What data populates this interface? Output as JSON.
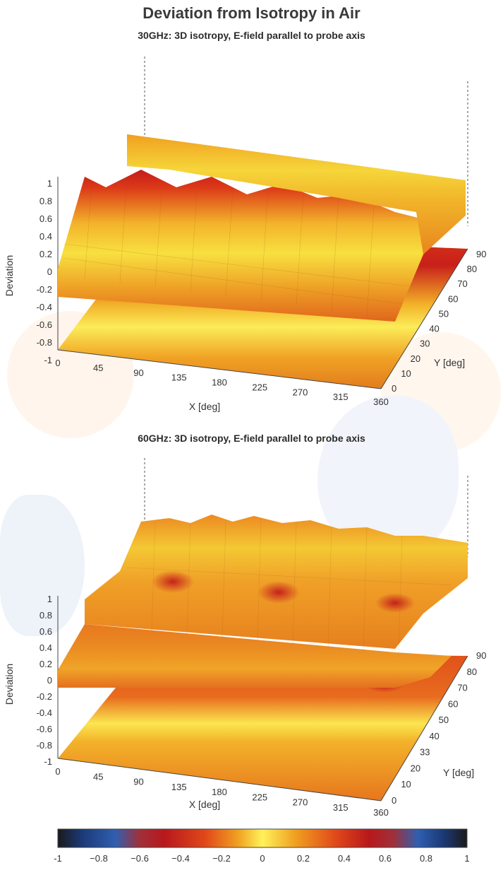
{
  "title": "Deviation from Isotropy in Air",
  "colors": {
    "dark_red": "#c01818",
    "red": "#e03a1a",
    "orange": "#ee7a1e",
    "yellow": "#f5d21c",
    "bright_yellow": "#fff25a"
  },
  "chart_data": [
    {
      "type": "surface",
      "title": "30GHz: 3D isotropy, E-field parallel to probe axis",
      "xlabel": "X [deg]",
      "ylabel": "Y [deg]",
      "zlabel": "Deviation",
      "x_ticks": [
        "0",
        "45",
        "90",
        "135",
        "180",
        "225",
        "270",
        "315",
        "360"
      ],
      "y_ticks": [
        "0",
        "10",
        "20",
        "30",
        "40",
        "50",
        "60",
        "70",
        "80",
        "90"
      ],
      "z_ticks": [
        "-1",
        "-0.8",
        "-0.6",
        "-0.4",
        "-0.2",
        "0",
        "0.2",
        "0.4",
        "0.6",
        "0.8",
        "1"
      ],
      "xlim": [
        0,
        360
      ],
      "ylim": [
        0,
        90
      ],
      "zlim": [
        -1,
        1
      ]
    },
    {
      "type": "surface",
      "title": "60GHz: 3D isotropy, E-field parallel to probe axis",
      "xlabel": "X [deg]",
      "ylabel": "Y [deg]",
      "zlabel": "Deviation",
      "x_ticks": [
        "0",
        "45",
        "90",
        "135",
        "180",
        "225",
        "270",
        "315",
        "360"
      ],
      "y_ticks": [
        "0",
        "10",
        "20",
        "33",
        "40",
        "50",
        "60",
        "70",
        "80",
        "90"
      ],
      "z_ticks": [
        "-1",
        "-0.8",
        "-0.6",
        "-0.4",
        "-0.2",
        "0",
        "0.2",
        "0.4",
        "0.6",
        "0.8",
        "1"
      ],
      "xlim": [
        0,
        360
      ],
      "ylim": [
        0,
        90
      ],
      "zlim": [
        -1,
        1
      ]
    }
  ],
  "colorbar": {
    "range": [
      -1,
      1
    ],
    "ticks": [
      "-1",
      "−0.8",
      "−0.6",
      "−0.4",
      "−0.2",
      "0",
      "0.2",
      "0.4",
      "0.6",
      "0.8",
      "1"
    ]
  }
}
